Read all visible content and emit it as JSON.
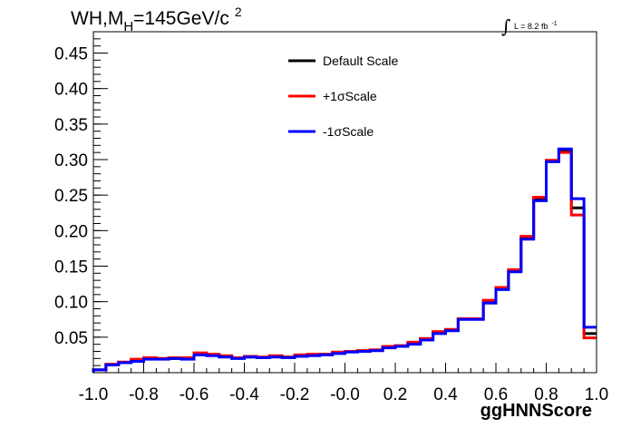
{
  "title": {
    "main": "WH,M",
    "subscript": "H",
    "value": "=145GeV/c",
    "superscript": "2"
  },
  "lumi": {
    "integral_symbol": "∫",
    "label": "L = 8.2 fb",
    "exponent": "-1"
  },
  "colors": {
    "default": "#000000",
    "plus": "#ff0000",
    "minus": "#0000ff"
  },
  "chart_data": {
    "type": "line",
    "style": "step-histogram",
    "xlabel": "ggHNNScore",
    "ylabel": "",
    "xlim": [
      -1.0,
      1.0
    ],
    "ylim": [
      0,
      0.48
    ],
    "x_ticks": [
      "-1.0",
      "-0.8",
      "-0.6",
      "-0.4",
      "-0.2",
      "-0.0",
      "0.2",
      "0.4",
      "0.6",
      "0.8",
      "1.0"
    ],
    "y_ticks": [
      "0.05",
      "0.10",
      "0.15",
      "0.20",
      "0.25",
      "0.30",
      "0.35",
      "0.40",
      "0.45"
    ],
    "grid": false,
    "legend_position": "top-center",
    "bin_edges": [
      -1.0,
      -0.95,
      -0.9,
      -0.85,
      -0.8,
      -0.75,
      -0.7,
      -0.65,
      -0.6,
      -0.55,
      -0.5,
      -0.45,
      -0.4,
      -0.35,
      -0.3,
      -0.25,
      -0.2,
      -0.15,
      -0.1,
      -0.05,
      0.0,
      0.05,
      0.1,
      0.15,
      0.2,
      0.25,
      0.3,
      0.35,
      0.4,
      0.45,
      0.5,
      0.55,
      0.6,
      0.65,
      0.7,
      0.75,
      0.8,
      0.85,
      0.9,
      0.95,
      1.0
    ],
    "series": [
      {
        "name": "Default Scale",
        "color": "#000000",
        "values": [
          0.004,
          0.011,
          0.014,
          0.017,
          0.02,
          0.02,
          0.02,
          0.02,
          0.027,
          0.025,
          0.023,
          0.021,
          0.022,
          0.021,
          0.023,
          0.022,
          0.024,
          0.025,
          0.026,
          0.028,
          0.03,
          0.031,
          0.032,
          0.036,
          0.038,
          0.042,
          0.048,
          0.056,
          0.06,
          0.076,
          0.076,
          0.101,
          0.119,
          0.144,
          0.19,
          0.245,
          0.298,
          0.313,
          0.232,
          0.055
        ]
      },
      {
        "name": "+1σScale",
        "color": "#ff0000",
        "values": [
          0.004,
          0.012,
          0.015,
          0.019,
          0.021,
          0.02,
          0.021,
          0.021,
          0.028,
          0.026,
          0.024,
          0.021,
          0.023,
          0.022,
          0.024,
          0.022,
          0.025,
          0.026,
          0.026,
          0.029,
          0.03,
          0.031,
          0.032,
          0.037,
          0.038,
          0.043,
          0.048,
          0.058,
          0.061,
          0.076,
          0.076,
          0.102,
          0.12,
          0.145,
          0.192,
          0.247,
          0.299,
          0.31,
          0.222,
          0.049
        ]
      },
      {
        "name": "-1σScale",
        "color": "#0000ff",
        "values": [
          0.004,
          0.011,
          0.014,
          0.016,
          0.019,
          0.019,
          0.02,
          0.019,
          0.025,
          0.024,
          0.022,
          0.02,
          0.022,
          0.021,
          0.022,
          0.021,
          0.023,
          0.024,
          0.025,
          0.027,
          0.029,
          0.03,
          0.031,
          0.035,
          0.037,
          0.04,
          0.046,
          0.055,
          0.059,
          0.075,
          0.075,
          0.098,
          0.117,
          0.142,
          0.188,
          0.242,
          0.297,
          0.315,
          0.245,
          0.064
        ]
      }
    ]
  }
}
